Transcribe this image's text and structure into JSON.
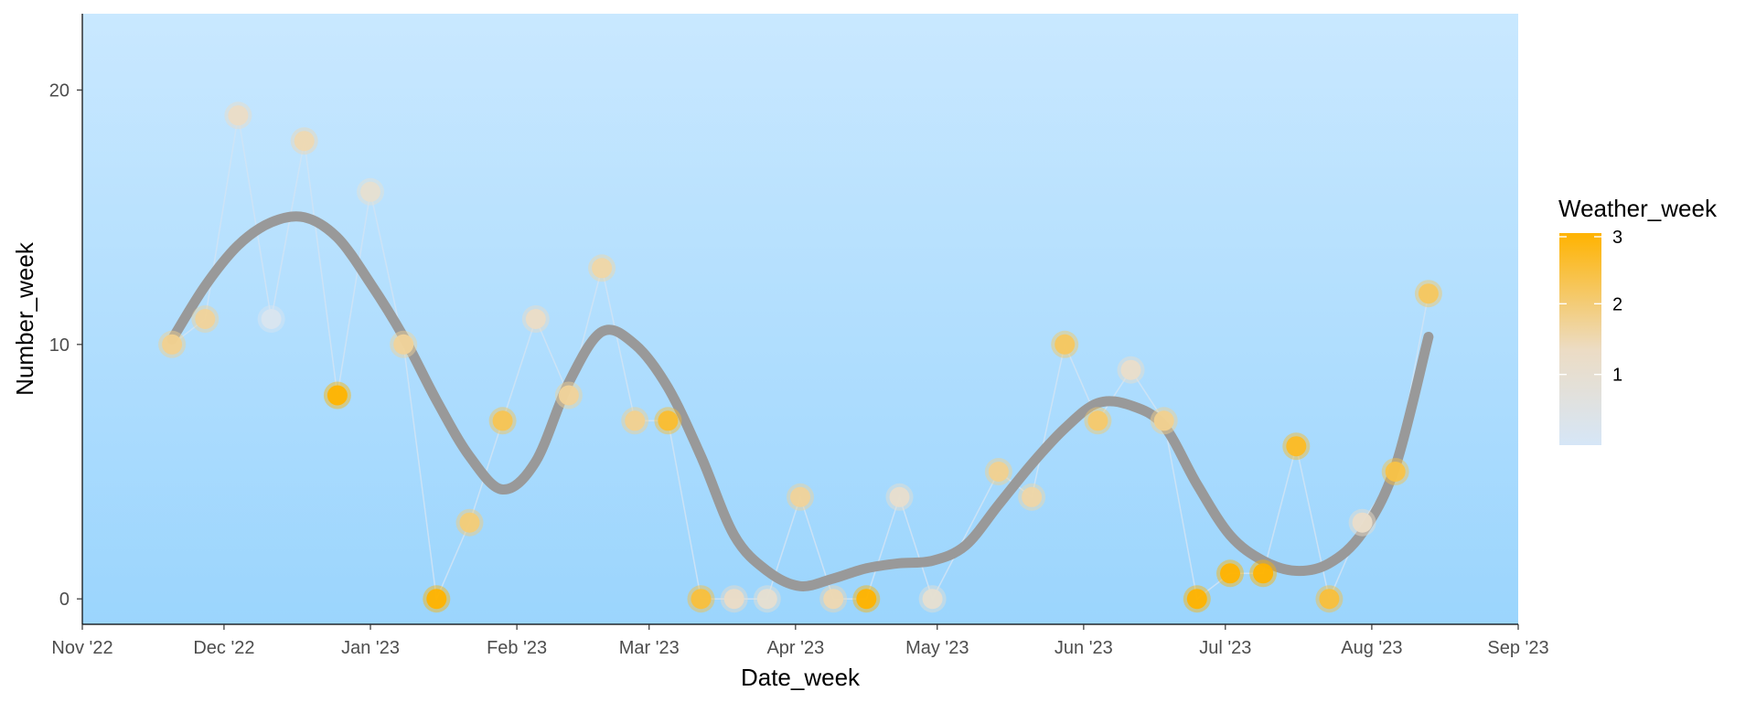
{
  "chart_data": {
    "type": "scatter",
    "title": "",
    "xlabel": "Date_week",
    "ylabel": "Number_week",
    "xlim": [
      "2022-11-01",
      "2023-09-01"
    ],
    "ylim": [
      -1,
      23
    ],
    "x_ticks": [
      "2022-11-01",
      "2022-12-01",
      "2023-01-01",
      "2023-02-01",
      "2023-03-01",
      "2023-04-01",
      "2023-05-01",
      "2023-06-01",
      "2023-07-01",
      "2023-08-01",
      "2023-09-01"
    ],
    "x_tick_labels": [
      "Nov '22",
      "Dec '22",
      "Jan '23",
      "Feb '23",
      "Mar '23",
      "Apr '23",
      "May '23",
      "Jun '23",
      "Jul '23",
      "Aug '23",
      "Sep '23"
    ],
    "y_ticks": [
      0,
      10,
      20
    ],
    "y_tick_labels": [
      "0",
      "10",
      "20"
    ],
    "grid": false,
    "background_gradient": [
      "#c9e8ff",
      "#9bd5fd"
    ],
    "connector_color": "#cfe3f5",
    "smooth_color": "#999999",
    "color_scale": {
      "name": "Weather_week",
      "low_color": "#d6e6f7",
      "mid_color": "#ecdcc4",
      "high_color": "#ffb300",
      "min": 0,
      "max": 3,
      "ticks": [
        1,
        2,
        3
      ],
      "tick_labels": [
        "1",
        "2",
        "3"
      ],
      "placement": "right"
    },
    "points": [
      {
        "date": "2022-11-20",
        "value": 10,
        "weather": 1.8
      },
      {
        "date": "2022-11-27",
        "value": 11,
        "weather": 1.7
      },
      {
        "date": "2022-12-04",
        "value": 19,
        "weather": 1.3
      },
      {
        "date": "2022-12-11",
        "value": 11,
        "weather": 0.2
      },
      {
        "date": "2022-12-18",
        "value": 18,
        "weather": 1.5
      },
      {
        "date": "2022-12-25",
        "value": 8,
        "weather": 3.0
      },
      {
        "date": "2023-01-01",
        "value": 16,
        "weather": 1.0
      },
      {
        "date": "2023-01-08",
        "value": 10,
        "weather": 1.7
      },
      {
        "date": "2023-01-15",
        "value": 0,
        "weather": 3.0
      },
      {
        "date": "2023-01-22",
        "value": 3,
        "weather": 2.0
      },
      {
        "date": "2023-01-29",
        "value": 7,
        "weather": 2.3
      },
      {
        "date": "2023-02-05",
        "value": 11,
        "weather": 1.3
      },
      {
        "date": "2023-02-12",
        "value": 8,
        "weather": 1.7
      },
      {
        "date": "2023-02-19",
        "value": 13,
        "weather": 1.6
      },
      {
        "date": "2023-02-26",
        "value": 7,
        "weather": 1.8
      },
      {
        "date": "2023-03-05",
        "value": 7,
        "weather": 2.6
      },
      {
        "date": "2023-03-12",
        "value": 0,
        "weather": 2.5
      },
      {
        "date": "2023-03-19",
        "value": 0,
        "weather": 1.3
      },
      {
        "date": "2023-03-26",
        "value": 0,
        "weather": 1.0
      },
      {
        "date": "2023-04-02",
        "value": 4,
        "weather": 1.7
      },
      {
        "date": "2023-04-09",
        "value": 0,
        "weather": 1.5
      },
      {
        "date": "2023-04-16",
        "value": 0,
        "weather": 3.0
      },
      {
        "date": "2023-04-23",
        "value": 4,
        "weather": 1.1
      },
      {
        "date": "2023-04-30",
        "value": 0,
        "weather": 1.0
      },
      {
        "date": "2023-05-14",
        "value": 5,
        "weather": 1.8
      },
      {
        "date": "2023-05-21",
        "value": 4,
        "weather": 1.6
      },
      {
        "date": "2023-05-28",
        "value": 10,
        "weather": 2.2
      },
      {
        "date": "2023-06-04",
        "value": 7,
        "weather": 2.1
      },
      {
        "date": "2023-06-11",
        "value": 9,
        "weather": 1.2
      },
      {
        "date": "2023-06-18",
        "value": 7,
        "weather": 1.8
      },
      {
        "date": "2023-06-25",
        "value": 0,
        "weather": 3.0
      },
      {
        "date": "2023-07-02",
        "value": 1,
        "weather": 3.0
      },
      {
        "date": "2023-07-09",
        "value": 1,
        "weather": 3.0
      },
      {
        "date": "2023-07-16",
        "value": 6,
        "weather": 2.7
      },
      {
        "date": "2023-07-23",
        "value": 0,
        "weather": 2.5
      },
      {
        "date": "2023-07-30",
        "value": 3,
        "weather": 1.2
      },
      {
        "date": "2023-08-06",
        "value": 5,
        "weather": 2.4
      },
      {
        "date": "2023-08-13",
        "value": 12,
        "weather": 2.2
      }
    ],
    "smooth": [
      {
        "date": "2022-11-20",
        "value": 10.2
      },
      {
        "date": "2022-11-27",
        "value": 12.3
      },
      {
        "date": "2022-12-04",
        "value": 13.9
      },
      {
        "date": "2022-12-11",
        "value": 14.8
      },
      {
        "date": "2022-12-18",
        "value": 15.0
      },
      {
        "date": "2022-12-25",
        "value": 14.2
      },
      {
        "date": "2023-01-01",
        "value": 12.4
      },
      {
        "date": "2023-01-08",
        "value": 10.3
      },
      {
        "date": "2023-01-15",
        "value": 7.8
      },
      {
        "date": "2023-01-22",
        "value": 5.6
      },
      {
        "date": "2023-01-29",
        "value": 4.3
      },
      {
        "date": "2023-02-05",
        "value": 5.4
      },
      {
        "date": "2023-02-12",
        "value": 8.5
      },
      {
        "date": "2023-02-19",
        "value": 10.5
      },
      {
        "date": "2023-02-26",
        "value": 10.0
      },
      {
        "date": "2023-03-05",
        "value": 8.3
      },
      {
        "date": "2023-03-12",
        "value": 5.6
      },
      {
        "date": "2023-03-19",
        "value": 2.5
      },
      {
        "date": "2023-03-26",
        "value": 1.1
      },
      {
        "date": "2023-04-02",
        "value": 0.5
      },
      {
        "date": "2023-04-09",
        "value": 0.8
      },
      {
        "date": "2023-04-16",
        "value": 1.2
      },
      {
        "date": "2023-04-23",
        "value": 1.4
      },
      {
        "date": "2023-04-30",
        "value": 1.5
      },
      {
        "date": "2023-05-07",
        "value": 2.1
      },
      {
        "date": "2023-05-14",
        "value": 3.7
      },
      {
        "date": "2023-05-21",
        "value": 5.3
      },
      {
        "date": "2023-05-28",
        "value": 6.7
      },
      {
        "date": "2023-06-04",
        "value": 7.7
      },
      {
        "date": "2023-06-11",
        "value": 7.6
      },
      {
        "date": "2023-06-18",
        "value": 6.8
      },
      {
        "date": "2023-06-25",
        "value": 4.5
      },
      {
        "date": "2023-07-02",
        "value": 2.5
      },
      {
        "date": "2023-07-09",
        "value": 1.5
      },
      {
        "date": "2023-07-16",
        "value": 1.1
      },
      {
        "date": "2023-07-23",
        "value": 1.4
      },
      {
        "date": "2023-07-30",
        "value": 2.6
      },
      {
        "date": "2023-08-06",
        "value": 5.2
      },
      {
        "date": "2023-08-13",
        "value": 10.3
      }
    ]
  }
}
